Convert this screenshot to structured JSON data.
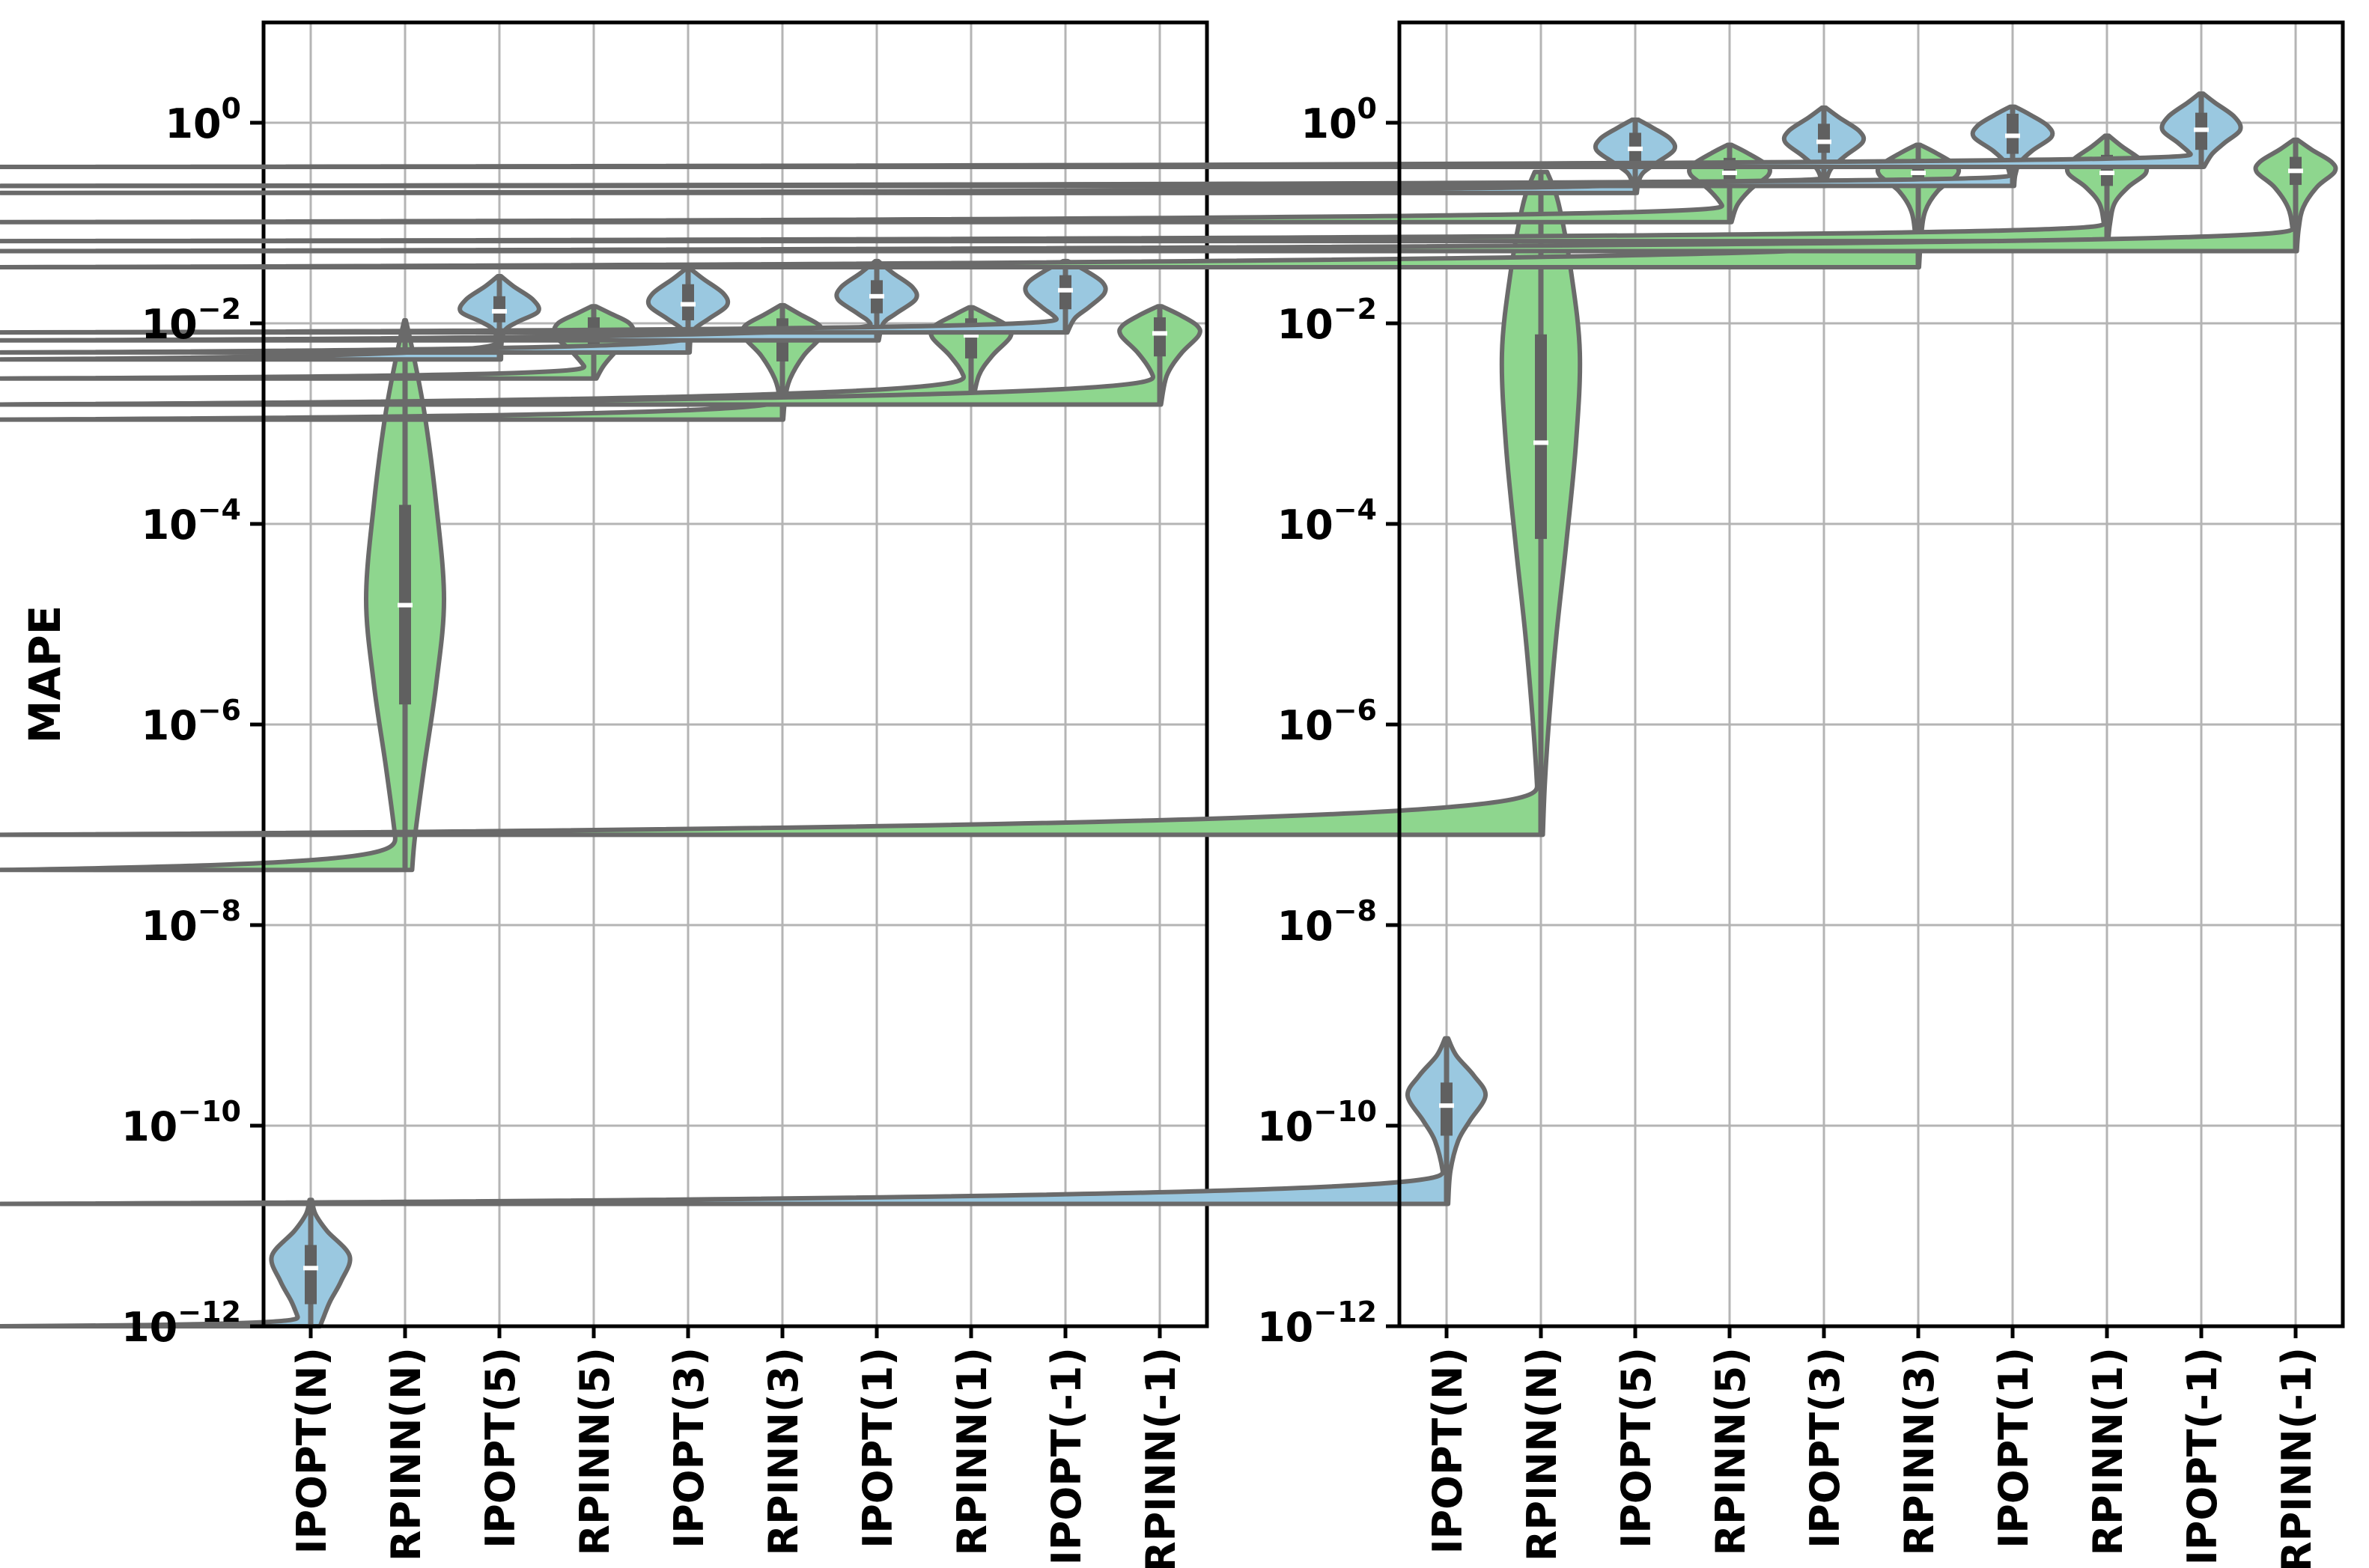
{
  "figure": {
    "ylabel": "MAPE"
  },
  "chart_data": [
    {
      "type": "violin",
      "id": "left",
      "ylabel": "MAPE",
      "xlabel": "",
      "yscale": "log",
      "ylim": [
        1e-12,
        10
      ],
      "grid": true,
      "ytick_exponents": [
        0,
        -2,
        -4,
        -6,
        -8,
        -10,
        -12
      ],
      "categories": [
        "IPOPT(N)",
        "RPINN(N)",
        "IPOPT(5)",
        "RPINN(5)",
        "IPOPT(3)",
        "RPINN(3)",
        "IPOPT(1)",
        "RPINN(1)",
        "IPOPT(-1)",
        "RPINN(-1)"
      ],
      "colors": {
        "IPOPT": "#9ac8e0",
        "RPINN": "#8ed68e",
        "edge": "#6a6a6a",
        "box": "#606060",
        "grid": "#b4b4b4"
      },
      "violins": [
        {
          "category": "IPOPT(N)",
          "series": "IPOPT",
          "stats_log10": {
            "whisker_low": -12.0,
            "q1": -11.78,
            "median": -11.42,
            "q3": -11.19,
            "whisker_high": -10.74
          },
          "profile_log10_halfwidth": [
            [
              -10.74,
              0.03
            ],
            [
              -10.88,
              0.12
            ],
            [
              -11.05,
              0.42
            ],
            [
              -11.3,
              1.0
            ],
            [
              -11.55,
              0.78
            ],
            [
              -11.75,
              0.5
            ],
            [
              -11.9,
              0.34
            ],
            [
              -12.0,
              0.24
            ]
          ]
        },
        {
          "category": "RPINN(N)",
          "series": "RPINN",
          "stats_log10": {
            "whisker_low": -7.45,
            "q1": -5.8,
            "median": -4.81,
            "q3": -3.81,
            "whisker_high": -1.97
          },
          "profile_log10_halfwidth": [
            [
              -1.97,
              0.02
            ],
            [
              -2.25,
              0.18
            ],
            [
              -2.9,
              0.5
            ],
            [
              -3.8,
              0.8
            ],
            [
              -4.75,
              1.0
            ],
            [
              -5.6,
              0.8
            ],
            [
              -6.4,
              0.5
            ],
            [
              -7.1,
              0.26
            ],
            [
              -7.45,
              0.18
            ]
          ]
        },
        {
          "category": "IPOPT(5)",
          "series": "IPOPT",
          "stats_log10": {
            "whisker_low": -2.36,
            "q1": -1.99,
            "median": -1.88,
            "q3": -1.73,
            "whisker_high": -1.53
          },
          "profile_log10_halfwidth": [
            [
              -1.53,
              0.04
            ],
            [
              -1.63,
              0.36
            ],
            [
              -1.76,
              0.85
            ],
            [
              -1.88,
              1.0
            ],
            [
              -1.98,
              0.5
            ],
            [
              -2.06,
              0.16
            ],
            [
              -2.18,
              0.06
            ],
            [
              -2.36,
              0.04
            ]
          ]
        },
        {
          "category": "RPINN(5)",
          "series": "RPINN",
          "stats_log10": {
            "whisker_low": -2.55,
            "q1": -2.31,
            "median": -2.12,
            "q3": -1.94,
            "whisker_high": -1.83
          },
          "profile_log10_halfwidth": [
            [
              -1.83,
              0.05
            ],
            [
              -1.9,
              0.42
            ],
            [
              -2.0,
              0.92
            ],
            [
              -2.12,
              1.0
            ],
            [
              -2.26,
              0.62
            ],
            [
              -2.42,
              0.26
            ],
            [
              -2.55,
              0.07
            ]
          ]
        },
        {
          "category": "IPOPT(3)",
          "series": "IPOPT",
          "stats_log10": {
            "whisker_low": -2.29,
            "q1": -1.97,
            "median": -1.81,
            "q3": -1.61,
            "whisker_high": -1.45
          },
          "profile_log10_halfwidth": [
            [
              -1.45,
              0.04
            ],
            [
              -1.56,
              0.4
            ],
            [
              -1.7,
              0.9
            ],
            [
              -1.82,
              1.0
            ],
            [
              -1.95,
              0.55
            ],
            [
              -2.05,
              0.18
            ],
            [
              -2.14,
              0.07
            ],
            [
              -2.29,
              0.04
            ]
          ]
        },
        {
          "category": "RPINN(3)",
          "series": "RPINN",
          "stats_log10": {
            "whisker_low": -2.96,
            "q1": -2.38,
            "median": -2.12,
            "q3": -1.95,
            "whisker_high": -1.82
          },
          "profile_log10_halfwidth": [
            [
              -1.82,
              0.05
            ],
            [
              -1.91,
              0.45
            ],
            [
              -2.02,
              0.95
            ],
            [
              -2.13,
              1.0
            ],
            [
              -2.32,
              0.55
            ],
            [
              -2.55,
              0.2
            ],
            [
              -2.75,
              0.07
            ],
            [
              -2.96,
              0.02
            ]
          ]
        },
        {
          "category": "IPOPT(1)",
          "series": "IPOPT",
          "stats_log10": {
            "whisker_low": -2.17,
            "q1": -1.9,
            "median": -1.73,
            "q3": -1.57,
            "whisker_high": -1.38
          },
          "profile_log10_halfwidth": [
            [
              -1.38,
              0.04
            ],
            [
              -1.5,
              0.42
            ],
            [
              -1.64,
              0.92
            ],
            [
              -1.76,
              1.0
            ],
            [
              -1.9,
              0.5
            ],
            [
              -2.0,
              0.17
            ],
            [
              -2.17,
              0.05
            ]
          ]
        },
        {
          "category": "RPINN(1)",
          "series": "RPINN",
          "stats_log10": {
            "whisker_low": -2.81,
            "q1": -2.35,
            "median": -2.12,
            "q3": -1.95,
            "whisker_high": -1.84
          },
          "profile_log10_halfwidth": [
            [
              -1.84,
              0.05
            ],
            [
              -1.92,
              0.45
            ],
            [
              -2.03,
              0.95
            ],
            [
              -2.14,
              1.0
            ],
            [
              -2.32,
              0.55
            ],
            [
              -2.52,
              0.2
            ],
            [
              -2.81,
              0.03
            ]
          ]
        },
        {
          "category": "IPOPT(-1)",
          "series": "IPOPT",
          "stats_log10": {
            "whisker_low": -2.09,
            "q1": -1.86,
            "median": -1.67,
            "q3": -1.52,
            "whisker_high": -1.38
          },
          "profile_log10_halfwidth": [
            [
              -1.38,
              0.06
            ],
            [
              -1.47,
              0.5
            ],
            [
              -1.59,
              0.95
            ],
            [
              -1.7,
              1.0
            ],
            [
              -1.84,
              0.6
            ],
            [
              -1.95,
              0.24
            ],
            [
              -2.09,
              0.05
            ]
          ]
        },
        {
          "category": "RPINN(-1)",
          "series": "RPINN",
          "stats_log10": {
            "whisker_low": -2.81,
            "q1": -2.33,
            "median": -2.1,
            "q3": -1.94,
            "whisker_high": -1.83
          },
          "profile_log10_halfwidth": [
            [
              -1.83,
              0.05
            ],
            [
              -1.91,
              0.48
            ],
            [
              -2.02,
              0.95
            ],
            [
              -2.12,
              1.0
            ],
            [
              -2.3,
              0.55
            ],
            [
              -2.52,
              0.18
            ],
            [
              -2.81,
              0.03
            ]
          ]
        }
      ]
    },
    {
      "type": "violin",
      "id": "right",
      "ylabel": "",
      "xlabel": "",
      "yscale": "log",
      "ylim": [
        1e-12,
        10
      ],
      "grid": true,
      "ytick_exponents": [
        0,
        -2,
        -4,
        -6,
        -8,
        -10,
        -12
      ],
      "categories": [
        "IPOPT(N)",
        "RPINN(N)",
        "IPOPT(5)",
        "RPINN(5)",
        "IPOPT(3)",
        "RPINN(3)",
        "IPOPT(1)",
        "RPINN(1)",
        "IPOPT(-1)",
        "RPINN(-1)"
      ],
      "colors": {
        "IPOPT": "#9ac8e0",
        "RPINN": "#8ed68e",
        "edge": "#6a6a6a",
        "box": "#606060",
        "grid": "#b4b4b4"
      },
      "violins": [
        {
          "category": "IPOPT(N)",
          "series": "IPOPT",
          "stats_log10": {
            "whisker_low": -10.78,
            "q1": -10.1,
            "median": -9.8,
            "q3": -9.57,
            "whisker_high": -9.13
          },
          "profile_log10_halfwidth": [
            [
              -9.13,
              0.04
            ],
            [
              -9.3,
              0.25
            ],
            [
              -9.5,
              0.7
            ],
            [
              -9.7,
              1.0
            ],
            [
              -9.95,
              0.6
            ],
            [
              -10.15,
              0.3
            ],
            [
              -10.45,
              0.1
            ],
            [
              -10.78,
              0.04
            ]
          ]
        },
        {
          "category": "RPINN(N)",
          "series": "RPINN",
          "stats_log10": {
            "whisker_low": -7.1,
            "q1": -4.15,
            "median": -3.19,
            "q3": -2.11,
            "whisker_high": -0.49
          },
          "profile_log10_halfwidth": [
            [
              -0.49,
              0.16
            ],
            [
              -0.8,
              0.45
            ],
            [
              -1.5,
              0.78
            ],
            [
              -2.3,
              1.0
            ],
            [
              -3.2,
              0.9
            ],
            [
              -4.2,
              0.65
            ],
            [
              -5.1,
              0.4
            ],
            [
              -6.0,
              0.2
            ],
            [
              -6.6,
              0.1
            ],
            [
              -7.1,
              0.05
            ]
          ]
        },
        {
          "category": "IPOPT(5)",
          "series": "IPOPT",
          "stats_log10": {
            "whisker_low": -0.7,
            "q1": -0.42,
            "median": -0.26,
            "q3": -0.1,
            "whisker_high": 0.03
          },
          "profile_log10_halfwidth": [
            [
              0.03,
              0.08
            ],
            [
              -0.05,
              0.45
            ],
            [
              -0.16,
              0.9
            ],
            [
              -0.27,
              1.0
            ],
            [
              -0.4,
              0.55
            ],
            [
              -0.5,
              0.2
            ],
            [
              -0.6,
              0.08
            ],
            [
              -0.7,
              0.04
            ]
          ]
        },
        {
          "category": "RPINN(5)",
          "series": "RPINN",
          "stats_log10": {
            "whisker_low": -0.99,
            "q1": -0.62,
            "median": -0.5,
            "q3": -0.35,
            "whisker_high": -0.22
          },
          "profile_log10_halfwidth": [
            [
              -0.22,
              0.05
            ],
            [
              -0.3,
              0.45
            ],
            [
              -0.42,
              0.95
            ],
            [
              -0.52,
              1.0
            ],
            [
              -0.66,
              0.55
            ],
            [
              -0.82,
              0.2
            ],
            [
              -0.99,
              0.05
            ]
          ]
        },
        {
          "category": "IPOPT(3)",
          "series": "IPOPT",
          "stats_log10": {
            "whisker_low": -0.63,
            "q1": -0.3,
            "median": -0.19,
            "q3": -0.01,
            "whisker_high": 0.15
          },
          "profile_log10_halfwidth": [
            [
              0.15,
              0.05
            ],
            [
              0.05,
              0.4
            ],
            [
              -0.08,
              0.9
            ],
            [
              -0.19,
              1.0
            ],
            [
              -0.33,
              0.55
            ],
            [
              -0.45,
              0.2
            ],
            [
              -0.55,
              0.08
            ],
            [
              -0.63,
              0.04
            ]
          ]
        },
        {
          "category": "RPINN(3)",
          "series": "RPINN",
          "stats_log10": {
            "whisker_low": -1.44,
            "q1": -0.64,
            "median": -0.5,
            "q3": -0.36,
            "whisker_high": -0.22
          },
          "profile_log10_halfwidth": [
            [
              -0.22,
              0.05
            ],
            [
              -0.3,
              0.45
            ],
            [
              -0.42,
              0.95
            ],
            [
              -0.52,
              1.0
            ],
            [
              -0.68,
              0.5
            ],
            [
              -0.88,
              0.18
            ],
            [
              -1.15,
              0.07
            ],
            [
              -1.44,
              0.02
            ]
          ]
        },
        {
          "category": "IPOPT(1)",
          "series": "IPOPT",
          "stats_log10": {
            "whisker_low": -0.63,
            "q1": -0.31,
            "median": -0.13,
            "q3": 0.09,
            "whisker_high": 0.16
          },
          "profile_log10_halfwidth": [
            [
              0.16,
              0.06
            ],
            [
              0.08,
              0.45
            ],
            [
              -0.03,
              0.9
            ],
            [
              -0.14,
              1.0
            ],
            [
              -0.28,
              0.5
            ],
            [
              -0.4,
              0.18
            ],
            [
              -0.52,
              0.07
            ],
            [
              -0.63,
              0.04
            ]
          ]
        },
        {
          "category": "RPINN(1)",
          "series": "RPINN",
          "stats_log10": {
            "whisker_low": -1.18,
            "q1": -0.63,
            "median": -0.5,
            "q3": -0.32,
            "whisker_high": -0.13
          },
          "profile_log10_halfwidth": [
            [
              -0.13,
              0.05
            ],
            [
              -0.24,
              0.4
            ],
            [
              -0.38,
              0.9
            ],
            [
              -0.5,
              1.0
            ],
            [
              -0.64,
              0.55
            ],
            [
              -0.8,
              0.2
            ],
            [
              -1.0,
              0.08
            ],
            [
              -1.18,
              0.03
            ]
          ]
        },
        {
          "category": "IPOPT(-1)",
          "series": "IPOPT",
          "stats_log10": {
            "whisker_low": -0.44,
            "q1": -0.27,
            "median": -0.07,
            "q3": 0.1,
            "whisker_high": 0.29
          },
          "profile_log10_halfwidth": [
            [
              0.29,
              0.05
            ],
            [
              0.2,
              0.35
            ],
            [
              0.06,
              0.85
            ],
            [
              -0.07,
              1.0
            ],
            [
              -0.2,
              0.6
            ],
            [
              -0.31,
              0.28
            ],
            [
              -0.44,
              0.07
            ]
          ]
        },
        {
          "category": "RPINN(-1)",
          "series": "RPINN",
          "stats_log10": {
            "whisker_low": -1.28,
            "q1": -0.62,
            "median": -0.48,
            "q3": -0.34,
            "whisker_high": -0.17
          },
          "profile_log10_halfwidth": [
            [
              -0.17,
              0.05
            ],
            [
              -0.27,
              0.42
            ],
            [
              -0.39,
              0.92
            ],
            [
              -0.49,
              1.0
            ],
            [
              -0.64,
              0.55
            ],
            [
              -0.84,
              0.2
            ],
            [
              -1.05,
              0.08
            ],
            [
              -1.28,
              0.03
            ]
          ]
        }
      ]
    }
  ]
}
